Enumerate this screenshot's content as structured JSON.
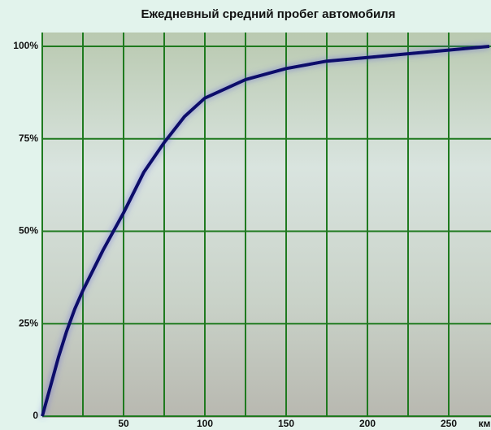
{
  "chart_data": {
    "type": "line",
    "title": "Ежедневный средний пробег автомобиля",
    "x_label": "км",
    "x": [
      0,
      5,
      10,
      15,
      20,
      25,
      37.5,
      50,
      62.5,
      75,
      87.5,
      100,
      125,
      150,
      175,
      200,
      225,
      250,
      275
    ],
    "series": [
      {
        "color": "#0b0b6b",
        "values": [
          0,
          8,
          16,
          23,
          29,
          34,
          45,
          55,
          66,
          74,
          81,
          86,
          91,
          94,
          96,
          97,
          98,
          99,
          100
        ]
      }
    ],
    "xlim": [
      0,
      276
    ],
    "ylim": [
      0,
      100
    ],
    "xticks": [
      50,
      100,
      150,
      200,
      250
    ],
    "xminor": [
      25,
      75,
      125,
      175,
      225
    ],
    "yticks": [
      0,
      {
        "value": 25,
        "label": "25%"
      },
      {
        "value": 50,
        "label": "50%"
      },
      {
        "value": 75,
        "label": "75%"
      },
      {
        "value": 100,
        "label": "100%"
      }
    ],
    "grid": true,
    "grid_color": "#1f7a1f"
  }
}
